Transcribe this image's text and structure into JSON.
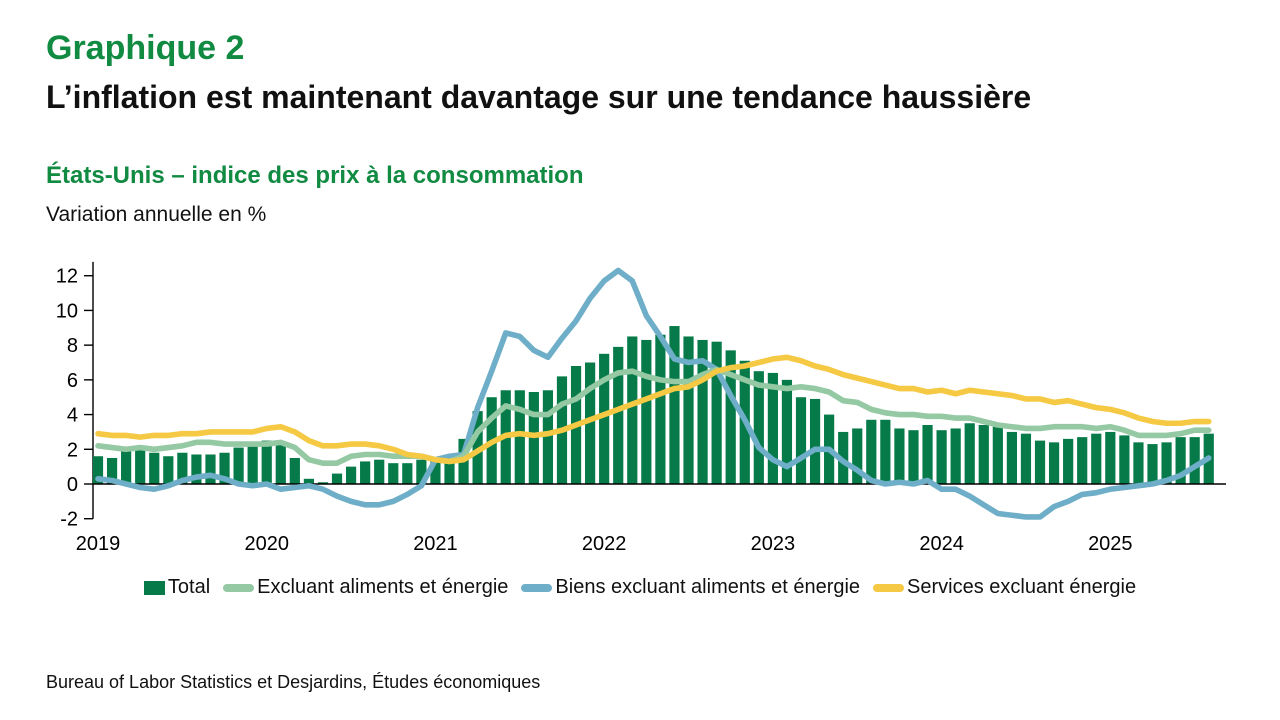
{
  "header": {
    "figure_label": "Graphique 2",
    "title": "L’inflation est maintenant davantage sur une tendance haussière"
  },
  "chart_heading": "États-Unis – indice des prix à la consommation",
  "unit_label": "Variation annuelle en %",
  "source": "Bureau of Labor Statistics et Desjardins, Études économiques",
  "colors": {
    "heading_green": "#118A42",
    "bar_green": "#067B49",
    "core_green": "#94C9A4",
    "goods_blue": "#6FAEC8",
    "services_yellow": "#F5C943",
    "axis_black": "#000000"
  },
  "legend": [
    {
      "id": "total",
      "label": "Total",
      "color": "#067B49",
      "shape": "square"
    },
    {
      "id": "core",
      "label": "Excluant aliments et énergie",
      "color": "#94C9A4",
      "shape": "line"
    },
    {
      "id": "goods",
      "label": "Biens excluant aliments et énergie",
      "color": "#6FAEC8",
      "shape": "line"
    },
    {
      "id": "services",
      "label": "Services excluant énergie",
      "color": "#F5C943",
      "shape": "line"
    }
  ],
  "chart_data": {
    "type": "bar+line",
    "title": "États-Unis – indice des prix à la consommation",
    "ylabel": "Variation annuelle en %",
    "x_unit": "month",
    "x_start": "2019-01",
    "x_end": "2025-08",
    "xtick_years": [
      "2019",
      "2020",
      "2021",
      "2022",
      "2023",
      "2024",
      "2025"
    ],
    "ylim": [
      -2,
      12.8
    ],
    "yticks": [
      -2,
      0,
      2,
      4,
      6,
      8,
      10,
      12
    ],
    "grid": false,
    "legend_position": "bottom",
    "bar_series": {
      "name": "Total",
      "color": "#067B49",
      "values": [
        1.6,
        1.5,
        1.9,
        2.0,
        1.8,
        1.6,
        1.8,
        1.7,
        1.7,
        1.8,
        2.1,
        2.3,
        2.5,
        2.3,
        1.5,
        0.3,
        0.1,
        0.6,
        1.0,
        1.3,
        1.4,
        1.2,
        1.2,
        1.4,
        1.4,
        1.7,
        2.6,
        4.2,
        5.0,
        5.4,
        5.4,
        5.3,
        5.4,
        6.2,
        6.8,
        7.0,
        7.5,
        7.9,
        8.5,
        8.3,
        8.6,
        9.1,
        8.5,
        8.3,
        8.2,
        7.7,
        7.1,
        6.5,
        6.4,
        6.0,
        5.0,
        4.9,
        4.0,
        3.0,
        3.2,
        3.7,
        3.7,
        3.2,
        3.1,
        3.4,
        3.1,
        3.2,
        3.5,
        3.4,
        3.3,
        3.0,
        2.9,
        2.5,
        2.4,
        2.6,
        2.7,
        2.9,
        3.0,
        2.8,
        2.4,
        2.3,
        2.4,
        2.7,
        2.7,
        2.9
      ]
    },
    "line_series": [
      {
        "id": "goods",
        "name": "Biens excluant aliments et énergie",
        "color": "#6FAEC8",
        "values": [
          0.3,
          0.2,
          0.0,
          -0.2,
          -0.3,
          -0.1,
          0.2,
          0.4,
          0.5,
          0.3,
          0.0,
          -0.1,
          0.0,
          -0.3,
          -0.2,
          -0.1,
          -0.3,
          -0.7,
          -1.0,
          -1.2,
          -1.2,
          -1.0,
          -0.6,
          -0.1,
          1.4,
          1.6,
          1.7,
          4.4,
          6.5,
          8.7,
          8.5,
          7.7,
          7.3,
          8.4,
          9.4,
          10.7,
          11.7,
          12.3,
          11.7,
          9.7,
          8.5,
          7.2,
          7.0,
          7.1,
          6.6,
          5.1,
          3.7,
          2.1,
          1.4,
          1.0,
          1.5,
          2.0,
          2.0,
          1.3,
          0.8,
          0.2,
          0.0,
          0.1,
          0.0,
          0.2,
          -0.3,
          -0.3,
          -0.7,
          -1.2,
          -1.7,
          -1.8,
          -1.9,
          -1.9,
          -1.3,
          -1.0,
          -0.6,
          -0.5,
          -0.3,
          -0.2,
          -0.1,
          0.0,
          0.2,
          0.5,
          1.0,
          1.5
        ]
      },
      {
        "id": "core",
        "name": "Excluant aliments et énergie",
        "color": "#94C9A4",
        "values": [
          2.2,
          2.1,
          2.0,
          2.1,
          2.0,
          2.1,
          2.2,
          2.4,
          2.4,
          2.3,
          2.3,
          2.3,
          2.3,
          2.4,
          2.1,
          1.4,
          1.2,
          1.2,
          1.6,
          1.7,
          1.7,
          1.6,
          1.6,
          1.6,
          1.4,
          1.3,
          1.6,
          3.0,
          3.8,
          4.5,
          4.3,
          4.0,
          4.0,
          4.6,
          4.9,
          5.5,
          6.0,
          6.4,
          6.5,
          6.2,
          6.0,
          5.9,
          5.9,
          6.3,
          6.6,
          6.3,
          6.0,
          5.7,
          5.6,
          5.5,
          5.6,
          5.5,
          5.3,
          4.8,
          4.7,
          4.3,
          4.1,
          4.0,
          4.0,
          3.9,
          3.9,
          3.8,
          3.8,
          3.6,
          3.4,
          3.3,
          3.2,
          3.2,
          3.3,
          3.3,
          3.3,
          3.2,
          3.3,
          3.1,
          2.8,
          2.8,
          2.8,
          2.9,
          3.1,
          3.1
        ]
      },
      {
        "id": "services",
        "name": "Services excluant énergie",
        "color": "#F5C943",
        "values": [
          2.9,
          2.8,
          2.8,
          2.7,
          2.8,
          2.8,
          2.9,
          2.9,
          3.0,
          3.0,
          3.0,
          3.0,
          3.2,
          3.3,
          3.0,
          2.5,
          2.2,
          2.2,
          2.3,
          2.3,
          2.2,
          2.0,
          1.7,
          1.6,
          1.4,
          1.3,
          1.4,
          1.9,
          2.4,
          2.8,
          2.9,
          2.8,
          2.9,
          3.1,
          3.4,
          3.7,
          4.0,
          4.3,
          4.6,
          4.9,
          5.2,
          5.5,
          5.6,
          6.0,
          6.5,
          6.7,
          6.8,
          7.0,
          7.2,
          7.3,
          7.1,
          6.8,
          6.6,
          6.3,
          6.1,
          5.9,
          5.7,
          5.5,
          5.5,
          5.3,
          5.4,
          5.2,
          5.4,
          5.3,
          5.2,
          5.1,
          4.9,
          4.9,
          4.7,
          4.8,
          4.6,
          4.4,
          4.3,
          4.1,
          3.8,
          3.6,
          3.5,
          3.5,
          3.6,
          3.6
        ]
      }
    ]
  }
}
